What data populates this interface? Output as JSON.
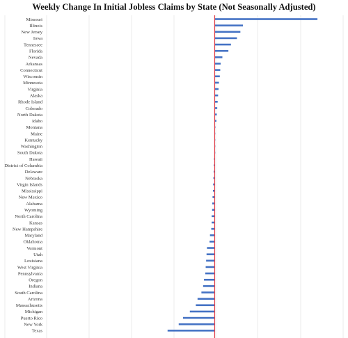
{
  "chart_data": {
    "type": "bar",
    "orientation": "horizontal",
    "title": "Weekly Change In Initial Jobless Claims by State (Not Seasonally Adjusted)",
    "categories": [
      "Missouri",
      "Illinois",
      "New Jersey",
      "Iowa",
      "Tennessee",
      "Florida",
      "Nevada",
      "Arkansas",
      "Connecticut",
      "Wisconsin",
      "Minnesota",
      "Virginia",
      "Alaska",
      "Rhode Island",
      "Colorado",
      "North Dakota",
      "Idaho",
      "Montana",
      "Maine",
      "Kentucky",
      "Washington",
      "South Dakota",
      "Hawaii",
      "District of Columbia",
      "Delaware",
      "Nebraska",
      "Virgin Islands",
      "Mississippi",
      "New Mexico",
      "Alabama",
      "Wyoming",
      "North Carolina",
      "Kansas",
      "New Hampshire",
      "Maryland",
      "Oklahoma",
      "Vermont",
      "Utah",
      "Louisiana",
      "West Virginia",
      "Pennsylvania",
      "Oregon",
      "Indiana",
      "South Carolina",
      "Arizona",
      "Massachusetts",
      "Michigan",
      "Puerto Rico",
      "New York",
      "Texas"
    ],
    "values": [
      12000,
      3300,
      3000,
      2600,
      1900,
      1600,
      900,
      700,
      650,
      600,
      500,
      450,
      400,
      350,
      300,
      250,
      200,
      80,
      50,
      30,
      20,
      10,
      -80,
      -100,
      -120,
      -150,
      -180,
      -200,
      -250,
      -280,
      -300,
      -350,
      -350,
      -400,
      -550,
      -600,
      -900,
      -950,
      -1000,
      -1050,
      -1100,
      -1250,
      -1350,
      -1550,
      -2000,
      -2200,
      -2900,
      -3700,
      -4200,
      -5500
    ],
    "xlim": [
      -24500,
      15000
    ],
    "zero_line_color": "#e0404a",
    "bar_color": "#4472c4",
    "grid": true,
    "legend": "none"
  }
}
